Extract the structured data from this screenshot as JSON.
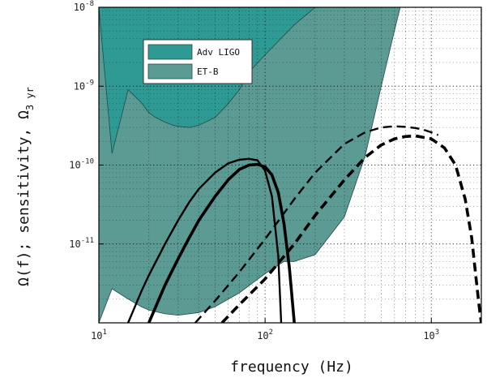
{
  "chart_data": {
    "type": "line",
    "title": "",
    "xlabel": "frequency (Hz)",
    "ylabel": "Ω(f); sensitivity, Ω",
    "ylabel_sub": "3 yr",
    "xscale": "log",
    "yscale": "log",
    "xlim": [
      10,
      2000
    ],
    "ylim": [
      1e-12,
      1e-08
    ],
    "grid": true,
    "legend_position": "top-left",
    "x_ticks": [
      {
        "value": 10,
        "base": "10",
        "exp": "1"
      },
      {
        "value": 100,
        "base": "10",
        "exp": "2"
      },
      {
        "value": 1000,
        "base": "10",
        "exp": "3"
      }
    ],
    "y_ticks": [
      {
        "value": 1e-11,
        "base": "10",
        "exp": "-11"
      },
      {
        "value": 1e-10,
        "base": "10",
        "exp": "-10"
      },
      {
        "value": 1e-09,
        "base": "10",
        "exp": "-9"
      },
      {
        "value": 1e-08,
        "base": "10",
        "exp": "-8"
      }
    ],
    "bands": [
      {
        "name": "Adv LIGO",
        "color": "#2e9a93",
        "x": [
          10,
          12,
          15,
          18,
          20,
          22,
          25,
          28,
          30,
          35,
          40,
          50,
          60,
          70,
          80,
          100,
          150,
          200,
          300,
          400
        ],
        "y_lower": [
          1e-08,
          1.4e-10,
          9e-10,
          6.2e-10,
          4.6e-10,
          4e-10,
          3.5e-10,
          3.2e-10,
          3.1e-10,
          3e-10,
          3.2e-10,
          4e-10,
          6e-10,
          9e-10,
          1.5e-09,
          2.5e-09,
          6e-09,
          1e-08,
          1e-08,
          1e-08
        ]
      },
      {
        "name": "ET-B",
        "color": "#5c9a94",
        "x": [
          10,
          12,
          15,
          18,
          20,
          25,
          30,
          40,
          50,
          70,
          100,
          130,
          150,
          200,
          300,
          400,
          500,
          600,
          650
        ],
        "y_lower": [
          1e-12,
          2.7e-12,
          2e-12,
          1.6e-12,
          1.45e-12,
          1.3e-12,
          1.25e-12,
          1.35e-12,
          1.6e-12,
          2.4e-12,
          4.2e-12,
          6e-12,
          6e-12,
          7.3e-12,
          2.2e-11,
          1.3e-10,
          1e-09,
          5e-09,
          1e-08
        ]
      }
    ],
    "series": [
      {
        "style": "solid-thin",
        "x": [
          15,
          18,
          20,
          25,
          30,
          35,
          40,
          50,
          60,
          70,
          80,
          90,
          100,
          110,
          120,
          125
        ],
        "y": [
          1e-12,
          2.5e-12,
          4e-12,
          1e-11,
          2e-11,
          3.4e-11,
          5e-11,
          8e-11,
          1.05e-10,
          1.17e-10,
          1.2e-10,
          1.15e-10,
          8.5e-11,
          4e-11,
          7e-12,
          1e-12
        ]
      },
      {
        "style": "solid-thick",
        "x": [
          20,
          25,
          30,
          35,
          40,
          50,
          60,
          70,
          80,
          90,
          100,
          110,
          120,
          130,
          140,
          150
        ],
        "y": [
          1e-12,
          3e-12,
          6.5e-12,
          1.2e-11,
          2e-11,
          4e-11,
          6.5e-11,
          8.8e-11,
          1e-10,
          1.02e-10,
          9.5e-11,
          7.5e-11,
          4.5e-11,
          1.8e-11,
          5e-12,
          1e-12
        ]
      },
      {
        "style": "dashed-thin",
        "x": [
          38,
          50,
          70,
          100,
          150,
          200,
          300,
          400,
          500,
          600,
          700,
          800,
          900,
          1000,
          1100
        ],
        "y": [
          1e-12,
          1.9e-12,
          4.4e-12,
          1.15e-11,
          3.7e-11,
          8e-11,
          1.85e-10,
          2.6e-10,
          3e-10,
          3.1e-10,
          3.05e-10,
          2.95e-10,
          2.8e-10,
          2.6e-10,
          2.4e-10
        ]
      },
      {
        "style": "dashed-thick",
        "x": [
          55,
          70,
          100,
          150,
          200,
          300,
          400,
          500,
          600,
          700,
          800,
          1000,
          1200,
          1400,
          1600,
          1750,
          1850,
          1950,
          2000
        ],
        "y": [
          1e-12,
          1.7e-12,
          3.6e-12,
          1e-11,
          2.3e-11,
          6.5e-11,
          1.25e-10,
          1.8e-10,
          2.15e-10,
          2.3e-10,
          2.35e-10,
          2.15e-10,
          1.65e-10,
          1e-10,
          3.7e-11,
          1.2e-11,
          4e-12,
          1.5e-12,
          1e-12
        ]
      }
    ]
  }
}
